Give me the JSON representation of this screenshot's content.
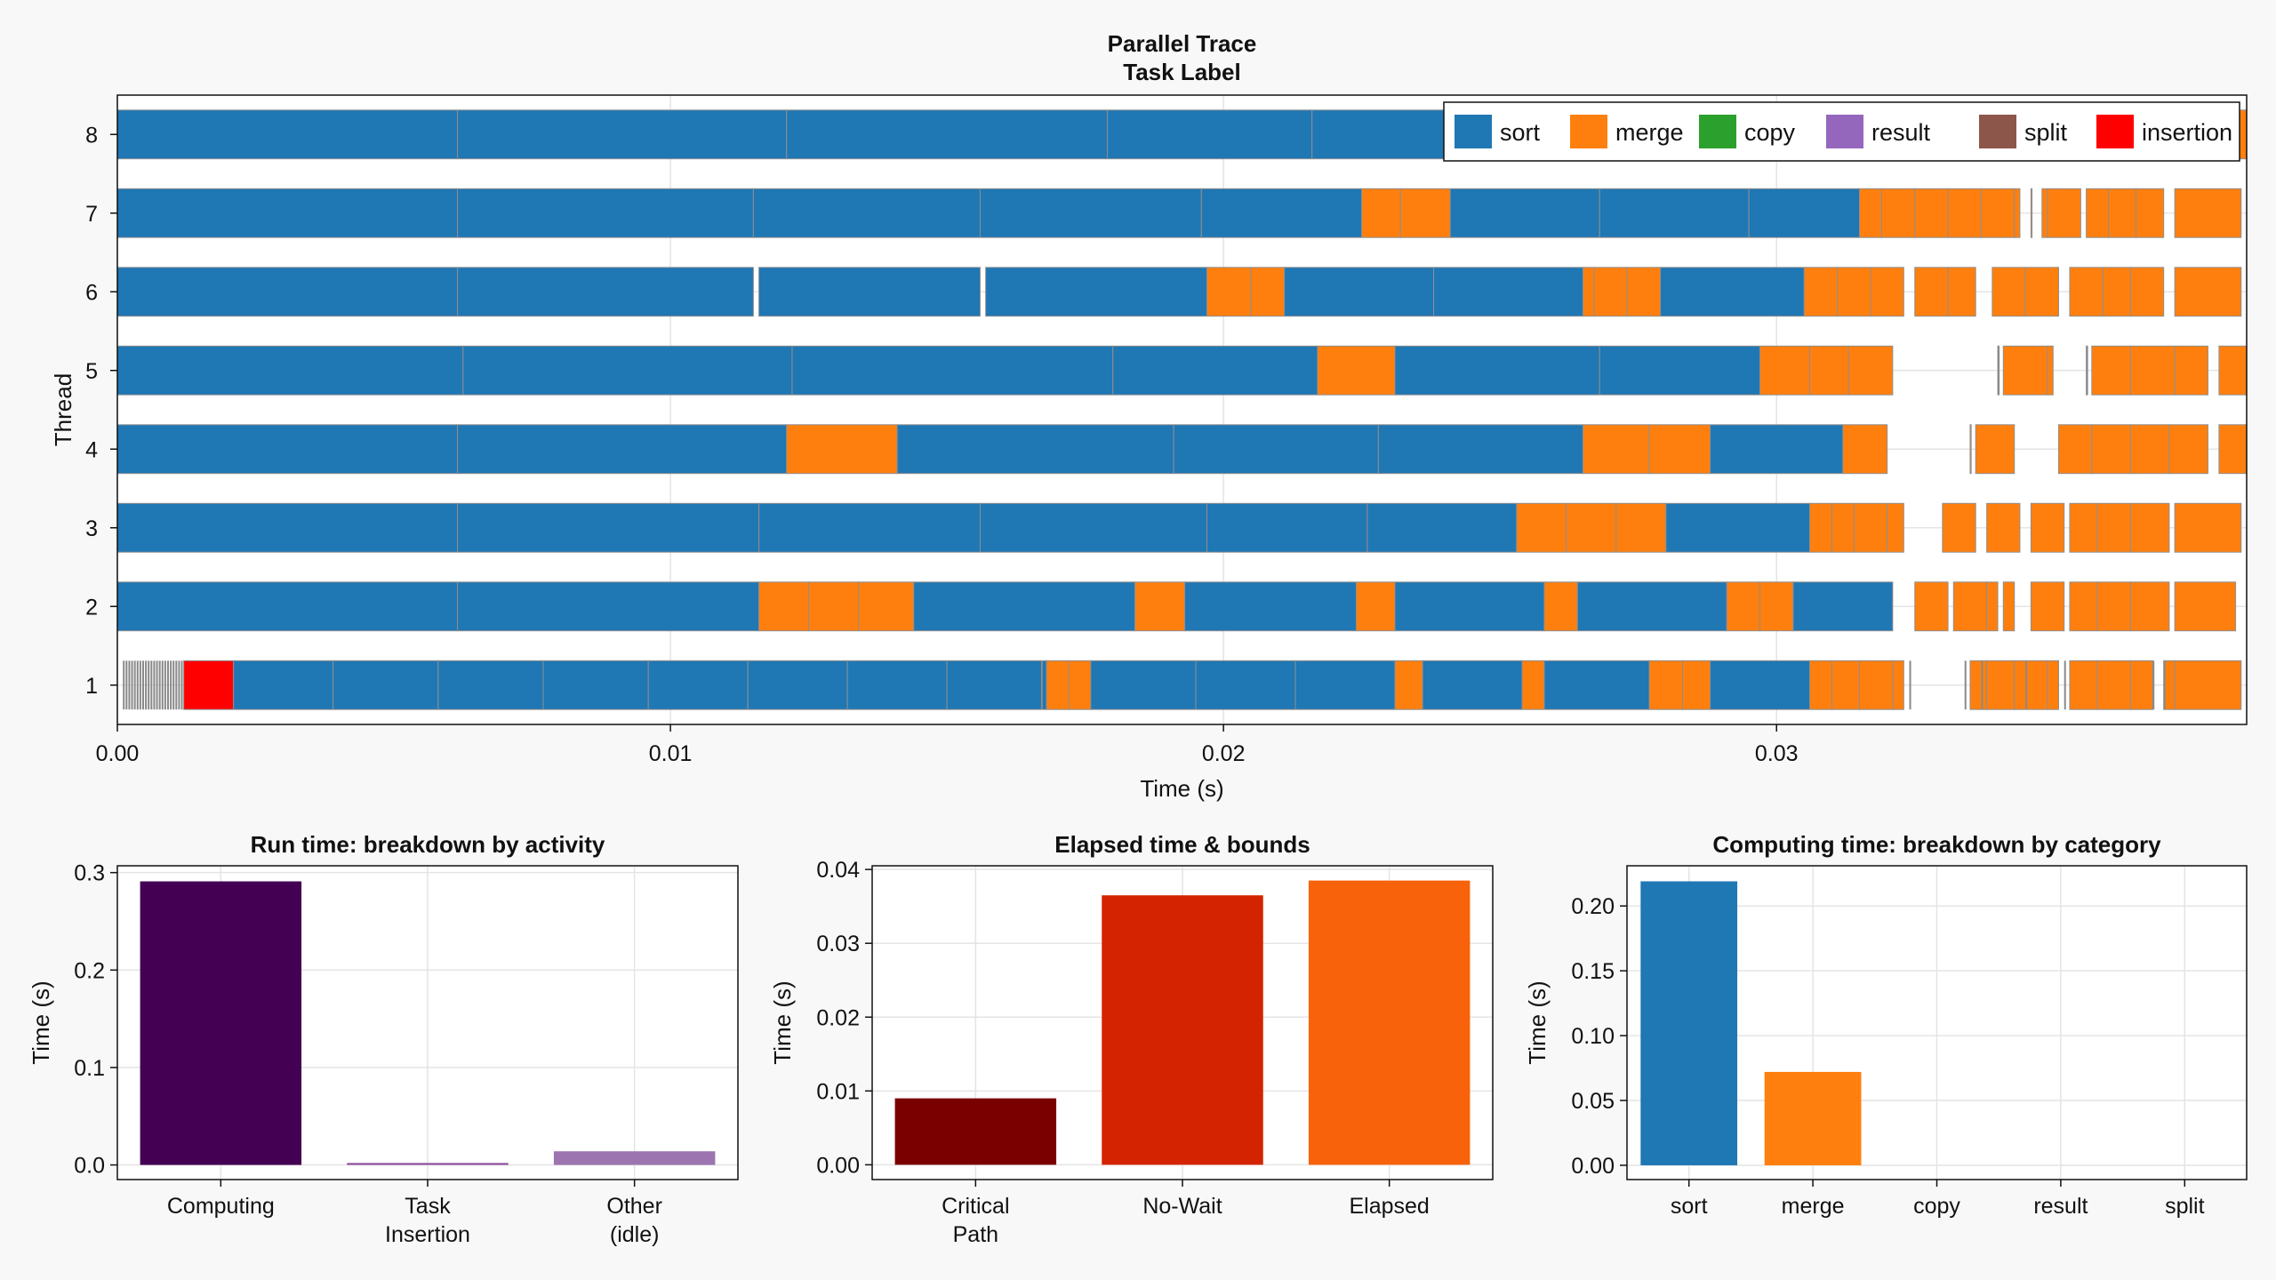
{
  "chart_data": [
    {
      "type": "gantt",
      "title": "Parallel Trace",
      "subtitle": "Task Label",
      "xlabel": "Time (s)",
      "ylabel": "Thread",
      "xlim": [
        0,
        0.0385
      ],
      "xticks": [
        "0.00",
        "0.01",
        "0.02",
        "0.03"
      ],
      "xtick_values": [
        0,
        0.01,
        0.02,
        0.03
      ],
      "threads": [
        "1",
        "2",
        "3",
        "4",
        "5",
        "6",
        "7",
        "8"
      ],
      "grid": true,
      "legend_position": "top-right",
      "legend": [
        {
          "name": "sort",
          "color": "#1f77b4"
        },
        {
          "name": "merge",
          "color": "#ff7f0e"
        },
        {
          "name": "copy",
          "color": "#2ca02c"
        },
        {
          "name": "result",
          "color": "#9467bd"
        },
        {
          "name": "split",
          "color": "#8c564b"
        },
        {
          "name": "insertion",
          "color": "#ff0000"
        }
      ],
      "tasks": {
        "8": [
          [
            "sort",
            0,
            0.00615
          ],
          [
            "sort",
            0.00615,
            0.0121
          ],
          [
            "sort",
            0.0121,
            0.0179
          ],
          [
            "sort",
            0.0179,
            0.0216
          ],
          [
            "sort",
            0.0216,
            0.0254
          ],
          [
            "merge",
            0.0254,
            0.0267
          ],
          [
            "sort",
            0.0267,
            0.0296
          ],
          [
            "merge",
            0.0296,
            0.0302
          ],
          [
            "merge",
            0.0302,
            0.0308
          ],
          [
            "merge",
            0.0308,
            0.0314
          ],
          [
            "merge",
            0.0314,
            0.032
          ],
          [
            "merge",
            0.0321,
            0.0329
          ],
          [
            "merge",
            0.033,
            0.0336
          ],
          [
            "merge",
            0.0337,
            0.0344
          ],
          [
            "merge",
            0.0345,
            0.0351
          ],
          [
            "merge",
            0.0352,
            0.0358
          ],
          [
            "merge",
            0.0358,
            0.0364
          ],
          [
            "merge",
            0.0365,
            0.0371
          ],
          [
            "merge",
            0.0372,
            0.0385
          ]
        ],
        "7": [
          [
            "sort",
            0,
            0.00615
          ],
          [
            "sort",
            0.00615,
            0.0115
          ],
          [
            "sort",
            0.0115,
            0.0156
          ],
          [
            "sort",
            0.0156,
            0.0196
          ],
          [
            "sort",
            0.0196,
            0.0225
          ],
          [
            "merge",
            0.0225,
            0.0232
          ],
          [
            "merge",
            0.0232,
            0.0241
          ],
          [
            "sort",
            0.0241,
            0.0268
          ],
          [
            "sort",
            0.0268,
            0.0295
          ],
          [
            "sort",
            0.0295,
            0.0315
          ],
          [
            "merge",
            0.0315,
            0.0319
          ],
          [
            "merge",
            0.0319,
            0.0325
          ],
          [
            "merge",
            0.0325,
            0.0331
          ],
          [
            "merge",
            0.0331,
            0.0337
          ],
          [
            "merge",
            0.0337,
            0.0343
          ],
          [
            "merge",
            0.0343,
            0.0344
          ],
          [
            "merge",
            0.0346,
            0.0346
          ],
          [
            "merge",
            0.0348,
            0.0349
          ],
          [
            "merge",
            0.0349,
            0.0355
          ],
          [
            "merge",
            0.0356,
            0.036
          ],
          [
            "merge",
            0.036,
            0.0365
          ],
          [
            "merge",
            0.0365,
            0.037
          ],
          [
            "merge",
            0.0372,
            0.0384
          ]
        ],
        "6": [
          [
            "sort",
            0,
            0.00615
          ],
          [
            "sort",
            0.00615,
            0.0115
          ],
          [
            "sort",
            0.0116,
            0.0156
          ],
          [
            "sort",
            0.0157,
            0.0197
          ],
          [
            "merge",
            0.0197,
            0.0205
          ],
          [
            "merge",
            0.0205,
            0.0211
          ],
          [
            "sort",
            0.0211,
            0.0238
          ],
          [
            "sort",
            0.0238,
            0.0265
          ],
          [
            "merge",
            0.0265,
            0.0267
          ],
          [
            "merge",
            0.0267,
            0.0273
          ],
          [
            "merge",
            0.0273,
            0.0279
          ],
          [
            "sort",
            0.0279,
            0.0305
          ],
          [
            "merge",
            0.0305,
            0.0311
          ],
          [
            "merge",
            0.0311,
            0.0317
          ],
          [
            "merge",
            0.0317,
            0.0323
          ],
          [
            "merge",
            0.0325,
            0.0331
          ],
          [
            "merge",
            0.0331,
            0.0336
          ],
          [
            "merge",
            0.0339,
            0.0345
          ],
          [
            "merge",
            0.0345,
            0.0351
          ],
          [
            "merge",
            0.0353,
            0.0359
          ],
          [
            "merge",
            0.0359,
            0.0364
          ],
          [
            "merge",
            0.0364,
            0.037
          ],
          [
            "merge",
            0.0372,
            0.0384
          ]
        ],
        "5": [
          [
            "sort",
            0,
            0.00625
          ],
          [
            "sort",
            0.00625,
            0.0122
          ],
          [
            "sort",
            0.0122,
            0.018
          ],
          [
            "sort",
            0.018,
            0.0217
          ],
          [
            "merge",
            0.0217,
            0.0231
          ],
          [
            "sort",
            0.0231,
            0.0268
          ],
          [
            "sort",
            0.0268,
            0.0297
          ],
          [
            "merge",
            0.0297,
            0.0306
          ],
          [
            "merge",
            0.0306,
            0.0313
          ],
          [
            "merge",
            0.0313,
            0.0321
          ],
          [
            "merge",
            0.034,
            0.034
          ],
          [
            "merge",
            0.0341,
            0.0349
          ],
          [
            "merge",
            0.0349,
            0.035
          ],
          [
            "merge",
            0.0356,
            0.0356
          ],
          [
            "merge",
            0.0357,
            0.0364
          ],
          [
            "merge",
            0.0364,
            0.0372
          ],
          [
            "merge",
            0.0372,
            0.0378
          ],
          [
            "merge",
            0.038,
            0.0385
          ]
        ],
        "4": [
          [
            "sort",
            0,
            0.00615
          ],
          [
            "sort",
            0.00615,
            0.0121
          ],
          [
            "merge",
            0.0121,
            0.0141
          ],
          [
            "sort",
            0.0141,
            0.0191
          ],
          [
            "sort",
            0.0191,
            0.0228
          ],
          [
            "sort",
            0.0228,
            0.0265
          ],
          [
            "merge",
            0.0265,
            0.0277
          ],
          [
            "merge",
            0.0277,
            0.0288
          ],
          [
            "sort",
            0.0288,
            0.0312
          ],
          [
            "merge",
            0.0312,
            0.032
          ],
          [
            "merge",
            0.0335,
            0.0335
          ],
          [
            "merge",
            0.0336,
            0.0343
          ],
          [
            "merge",
            0.0351,
            0.0357
          ],
          [
            "merge",
            0.0357,
            0.0364
          ],
          [
            "merge",
            0.0364,
            0.0371
          ],
          [
            "merge",
            0.0371,
            0.0378
          ],
          [
            "merge",
            0.038,
            0.0385
          ]
        ],
        "3": [
          [
            "sort",
            0,
            0.00615
          ],
          [
            "sort",
            0.00615,
            0.0116
          ],
          [
            "sort",
            0.0116,
            0.0156
          ],
          [
            "sort",
            0.0156,
            0.0197
          ],
          [
            "sort",
            0.0197,
            0.0226
          ],
          [
            "sort",
            0.0226,
            0.0253
          ],
          [
            "merge",
            0.0253,
            0.0262
          ],
          [
            "merge",
            0.0262,
            0.0271
          ],
          [
            "merge",
            0.0271,
            0.028
          ],
          [
            "sort",
            0.028,
            0.0306
          ],
          [
            "merge",
            0.0306,
            0.031
          ],
          [
            "merge",
            0.031,
            0.0314
          ],
          [
            "merge",
            0.0314,
            0.032
          ],
          [
            "merge",
            0.032,
            0.0323
          ],
          [
            "merge",
            0.033,
            0.0336
          ],
          [
            "merge",
            0.0338,
            0.0344
          ],
          [
            "merge",
            0.0346,
            0.0352
          ],
          [
            "merge",
            0.0353,
            0.0358
          ],
          [
            "merge",
            0.0358,
            0.0364
          ],
          [
            "merge",
            0.0364,
            0.0371
          ],
          [
            "merge",
            0.0372,
            0.0384
          ]
        ],
        "2": [
          [
            "sort",
            0,
            0.00615
          ],
          [
            "sort",
            0.00615,
            0.0116
          ],
          [
            "merge",
            0.0116,
            0.0125
          ],
          [
            "merge",
            0.0125,
            0.0134
          ],
          [
            "merge",
            0.0134,
            0.0144
          ],
          [
            "sort",
            0.0144,
            0.0184
          ],
          [
            "merge",
            0.0184,
            0.0193
          ],
          [
            "sort",
            0.0193,
            0.0224
          ],
          [
            "merge",
            0.0224,
            0.0231
          ],
          [
            "sort",
            0.0231,
            0.0258
          ],
          [
            "merge",
            0.0258,
            0.0264
          ],
          [
            "sort",
            0.0264,
            0.0291
          ],
          [
            "merge",
            0.0291,
            0.0297
          ],
          [
            "merge",
            0.0297,
            0.0303
          ],
          [
            "sort",
            0.0303,
            0.0321
          ],
          [
            "merge",
            0.0325,
            0.0331
          ],
          [
            "merge",
            0.0332,
            0.0338
          ],
          [
            "merge",
            0.0338,
            0.034
          ],
          [
            "merge",
            0.0341,
            0.0343
          ],
          [
            "merge",
            0.0346,
            0.0352
          ],
          [
            "merge",
            0.0353,
            0.0358
          ],
          [
            "merge",
            0.0358,
            0.0364
          ],
          [
            "merge",
            0.0364,
            0.0371
          ],
          [
            "merge",
            0.0372,
            0.0383
          ]
        ],
        "1": [
          [
            "insertion",
            0.0012,
            0.0021
          ],
          [
            "sort",
            0.0021,
            0.0039
          ],
          [
            "sort",
            0.0039,
            0.0058
          ],
          [
            "sort",
            0.0058,
            0.0077
          ],
          [
            "sort",
            0.0077,
            0.0096
          ],
          [
            "sort",
            0.0096,
            0.0114
          ],
          [
            "sort",
            0.0114,
            0.0132
          ],
          [
            "sort",
            0.0132,
            0.015
          ],
          [
            "sort",
            0.015,
            0.0168
          ],
          [
            "merge",
            0.0168,
            0.0172
          ],
          [
            "merge",
            0.0172,
            0.0176
          ],
          [
            "sort",
            0.0176,
            0.0195
          ],
          [
            "sort",
            0.0195,
            0.0213
          ],
          [
            "sort",
            0.0213,
            0.0231
          ],
          [
            "merge",
            0.0231,
            0.0236
          ],
          [
            "sort",
            0.0236,
            0.0254
          ],
          [
            "merge",
            0.0254,
            0.0258
          ],
          [
            "sort",
            0.0258,
            0.0277
          ],
          [
            "merge",
            0.0277,
            0.0283
          ],
          [
            "merge",
            0.0283,
            0.0288
          ],
          [
            "sort",
            0.0288,
            0.0306
          ],
          [
            "merge",
            0.0306,
            0.031
          ],
          [
            "merge",
            0.031,
            0.0315
          ],
          [
            "merge",
            0.0315,
            0.0321
          ],
          [
            "merge",
            0.0321,
            0.0323
          ],
          [
            "merge",
            0.0335,
            0.0338
          ],
          [
            "merge",
            0.0338,
            0.0343
          ],
          [
            "merge",
            0.0343,
            0.0349
          ],
          [
            "merge",
            0.0349,
            0.0351
          ],
          [
            "merge",
            0.0353,
            0.0358
          ],
          [
            "merge",
            0.0358,
            0.0364
          ],
          [
            "merge",
            0.0364,
            0.0368
          ],
          [
            "merge",
            0.037,
            0.0372
          ],
          [
            "merge",
            0.0372,
            0.0384
          ]
        ]
      },
      "thin_events": {
        "1": [
          0.0001,
          0.00015,
          0.0002,
          0.00025,
          0.0003,
          0.00035,
          0.0004,
          0.00045,
          0.0005,
          0.00055,
          0.0006,
          0.00065,
          0.0007,
          0.00075,
          0.0008,
          0.00085,
          0.0009,
          0.00095,
          0.001,
          0.00105,
          0.0011,
          0.00115,
          0.0167,
          0.0324,
          0.0334,
          0.0337,
          0.0345,
          0.0352,
          0.0368,
          0.037
        ],
        "5": [
          0.034,
          0.0356
        ]
      }
    },
    {
      "type": "bar",
      "title": "Run time: breakdown by activity",
      "xlabel": "",
      "ylabel": "Time (s)",
      "categories": [
        "Computing",
        "Task\nInsertion",
        "Other\n(idle)"
      ],
      "values": [
        0.291,
        0.002,
        0.014
      ],
      "colors": [
        "#440154",
        "#8e4f9c",
        "#9c74b0"
      ],
      "ylim": [
        -0.015,
        0.307
      ],
      "yticks": [
        "0.0",
        "0.1",
        "0.2",
        "0.3"
      ],
      "ytick_values": [
        0,
        0.1,
        0.2,
        0.3
      ],
      "grid": true
    },
    {
      "type": "bar",
      "title": "Elapsed time & bounds",
      "xlabel": "",
      "ylabel": "Time (s)",
      "categories": [
        "Critical\nPath",
        "No-Wait",
        "Elapsed"
      ],
      "values": [
        0.009,
        0.0365,
        0.0385
      ],
      "colors": [
        "#7a0000",
        "#d42300",
        "#f7620b"
      ],
      "ylim": [
        -0.002,
        0.0405
      ],
      "yticks": [
        "0.00",
        "0.01",
        "0.02",
        "0.03",
        "0.04"
      ],
      "ytick_values": [
        0,
        0.01,
        0.02,
        0.03,
        0.04
      ],
      "grid": true
    },
    {
      "type": "bar",
      "title": "Computing time: breakdown by category",
      "xlabel": "",
      "ylabel": "Time (s)",
      "categories": [
        "sort",
        "merge",
        "copy",
        "result",
        "split"
      ],
      "values": [
        0.219,
        0.072,
        0,
        0,
        0
      ],
      "colors": [
        "#1f77b4",
        "#ff7f0e",
        "#2ca02c",
        "#9467bd",
        "#8c564b"
      ],
      "ylim": [
        -0.011,
        0.231
      ],
      "yticks": [
        "0.00",
        "0.05",
        "0.10",
        "0.15",
        "0.20"
      ],
      "ytick_values": [
        0,
        0.05,
        0.1,
        0.15,
        0.2
      ],
      "grid": true
    }
  ]
}
